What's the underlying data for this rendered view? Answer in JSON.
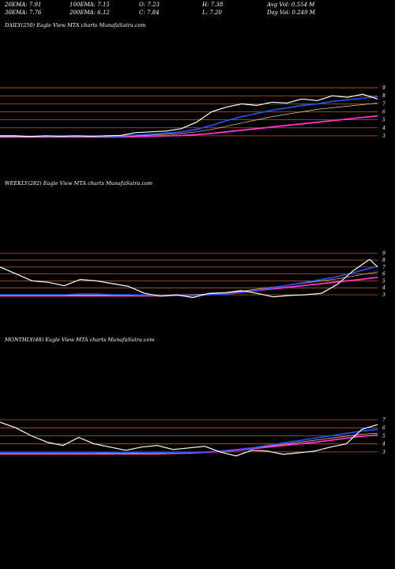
{
  "header": {
    "ema20": "20EMA: 7.91",
    "ema100": "100EMA: 7.15",
    "open": "O: 7.23",
    "high": "H: 7.38",
    "avgvol": "Avg Vol: 0.554  M",
    "ema30": "30EMA: 7.76",
    "ema200": "200EMA: 6.12",
    "close": "C: 7.84",
    "low": "L: 7.20",
    "dayvol": "Day Vol: 0.249 M"
  },
  "colors": {
    "price": "#ffffff",
    "ema_blue": "#2255ff",
    "ema_magenta": "#ff33cc",
    "ema_other": "#ffcc88",
    "level": "#b8601a"
  },
  "chart_data": [
    {
      "type": "line",
      "title": "DAILY(250) Eagle   View  MTA charts MunafaSutra.com",
      "yticks": [
        "9",
        "8",
        "7",
        "6",
        "5",
        "4",
        "3"
      ],
      "levels": [
        9,
        8,
        7,
        6,
        5,
        4,
        3
      ],
      "ylim": [
        2.2,
        9.6
      ],
      "x": [
        0,
        10,
        20,
        30,
        40,
        50,
        60,
        70,
        80,
        90,
        100,
        110,
        120,
        130,
        140,
        150,
        160,
        170,
        180,
        190,
        200,
        210,
        220,
        230,
        240,
        250
      ],
      "series": [
        {
          "values": [
            3.0,
            3.0,
            2.9,
            3.0,
            2.95,
            3.0,
            2.95,
            3.0,
            3.05,
            3.4,
            3.5,
            3.6,
            3.9,
            4.7,
            6.0,
            6.6,
            7.0,
            6.8,
            7.2,
            7.1,
            7.6,
            7.4,
            8.0,
            7.8,
            8.2,
            7.6
          ]
        },
        {
          "values": [
            3.0,
            3.0,
            2.95,
            2.95,
            2.95,
            2.95,
            2.95,
            2.95,
            3.0,
            3.1,
            3.2,
            3.35,
            3.5,
            3.8,
            4.3,
            4.9,
            5.4,
            5.8,
            6.2,
            6.5,
            6.8,
            7.0,
            7.3,
            7.5,
            7.7,
            7.9
          ]
        },
        {
          "values": [
            2.9,
            2.9,
            2.9,
            2.9,
            2.9,
            2.9,
            2.9,
            2.9,
            2.95,
            3.0,
            3.1,
            3.2,
            3.3,
            3.5,
            3.8,
            4.2,
            4.6,
            5.0,
            5.4,
            5.7,
            6.0,
            6.3,
            6.5,
            6.7,
            6.9,
            7.1
          ]
        },
        {
          "values": [
            2.85,
            2.85,
            2.85,
            2.85,
            2.85,
            2.85,
            2.85,
            2.85,
            2.88,
            2.9,
            2.95,
            3.0,
            3.05,
            3.15,
            3.3,
            3.5,
            3.7,
            3.9,
            4.1,
            4.3,
            4.5,
            4.7,
            4.9,
            5.1,
            5.3,
            5.5
          ]
        }
      ]
    },
    {
      "type": "line",
      "title": "WEEKLY(282) Eagle   View  MTA charts MunafaSutra.com",
      "yticks": [
        "9",
        "8",
        "7",
        "6",
        "5",
        "4",
        "3"
      ],
      "levels": [
        9,
        8,
        7,
        6,
        5,
        4,
        3
      ],
      "ylim": [
        2.2,
        9.6
      ],
      "x": [
        0,
        12,
        24,
        36,
        48,
        60,
        72,
        84,
        96,
        108,
        120,
        132,
        144,
        156,
        168,
        180,
        192,
        204,
        216,
        228,
        240,
        252,
        264,
        276,
        282
      ],
      "series": [
        {
          "values": [
            7.0,
            6.0,
            5.0,
            4.8,
            4.3,
            5.2,
            5.0,
            4.6,
            4.2,
            3.2,
            2.8,
            3.0,
            2.6,
            3.2,
            3.3,
            3.6,
            3.2,
            2.7,
            2.9,
            3.0,
            3.2,
            4.5,
            6.5,
            8.1,
            7.0
          ]
        },
        {
          "values": [
            3.0,
            3.0,
            3.0,
            3.0,
            3.0,
            3.1,
            3.1,
            3.0,
            3.0,
            2.95,
            2.9,
            2.9,
            2.9,
            3.0,
            3.1,
            3.3,
            3.6,
            4.0,
            4.4,
            4.8,
            5.2,
            5.6,
            6.2,
            6.8,
            7.1
          ]
        },
        {
          "values": [
            2.9,
            2.9,
            2.9,
            2.9,
            2.9,
            2.9,
            2.9,
            2.9,
            2.9,
            2.9,
            2.9,
            2.95,
            3.0,
            3.1,
            3.3,
            3.5,
            3.8,
            4.1,
            4.4,
            4.7,
            5.0,
            5.3,
            5.7,
            6.1,
            6.3
          ]
        },
        {
          "values": [
            2.85,
            2.85,
            2.85,
            2.85,
            2.85,
            2.85,
            2.85,
            2.85,
            2.85,
            2.85,
            2.85,
            2.9,
            2.95,
            3.05,
            3.2,
            3.4,
            3.6,
            3.85,
            4.1,
            4.35,
            4.6,
            4.85,
            5.1,
            5.35,
            5.5
          ]
        }
      ]
    },
    {
      "type": "line",
      "title": "MONTHLY(48) Eagle   View  MTA charts MunafaSutra.com",
      "yticks": [
        "7",
        "6",
        "5",
        "4",
        "3"
      ],
      "levels": [
        7,
        6,
        5,
        4,
        3
      ],
      "ylim": [
        2.2,
        7.6
      ],
      "x": [
        0,
        2,
        4,
        6,
        8,
        10,
        12,
        14,
        16,
        18,
        20,
        22,
        24,
        26,
        28,
        30,
        32,
        34,
        36,
        38,
        40,
        42,
        44,
        46,
        48
      ],
      "series": [
        {
          "values": [
            6.7,
            6.0,
            5.0,
            4.2,
            3.8,
            4.8,
            4.0,
            3.6,
            3.2,
            3.6,
            3.8,
            3.3,
            3.5,
            3.7,
            3.0,
            2.5,
            3.2,
            3.1,
            2.7,
            2.9,
            3.1,
            3.6,
            4.0,
            5.8,
            6.4
          ]
        },
        {
          "values": [
            2.9,
            2.9,
            2.9,
            2.9,
            2.9,
            2.9,
            2.9,
            2.95,
            2.95,
            2.9,
            2.9,
            2.9,
            2.95,
            3.0,
            3.1,
            3.3,
            3.5,
            3.8,
            4.1,
            4.4,
            4.7,
            5.0,
            5.3,
            5.6,
            5.8
          ]
        },
        {
          "values": [
            2.8,
            2.8,
            2.8,
            2.8,
            2.8,
            2.8,
            2.8,
            2.8,
            2.8,
            2.8,
            2.8,
            2.85,
            2.9,
            3.0,
            3.15,
            3.3,
            3.5,
            3.7,
            3.95,
            4.2,
            4.45,
            4.7,
            4.95,
            5.2,
            5.3
          ]
        },
        {
          "values": [
            2.75,
            2.75,
            2.75,
            2.75,
            2.75,
            2.75,
            2.75,
            2.75,
            2.75,
            2.75,
            2.75,
            2.8,
            2.85,
            2.95,
            3.05,
            3.2,
            3.4,
            3.6,
            3.8,
            4.0,
            4.2,
            4.45,
            4.7,
            4.95,
            5.1
          ]
        }
      ]
    }
  ]
}
